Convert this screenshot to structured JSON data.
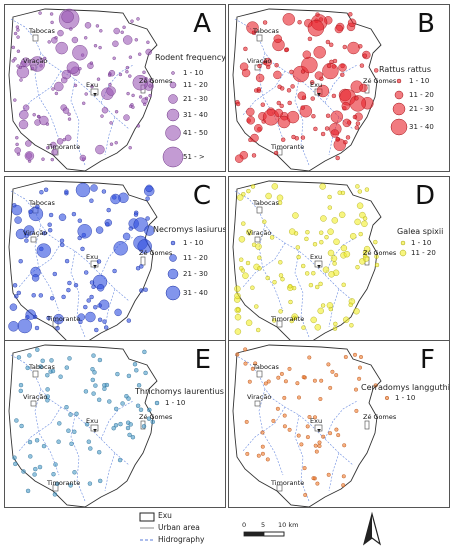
{
  "towns": [
    "Tabocas",
    "Viração",
    "Exu",
    "Zé Gomes",
    "Timorante"
  ],
  "panels": [
    {
      "letter": "A",
      "legend_title": "Rodent frequency",
      "classes": [
        "1 - 10",
        "11 - 20",
        "21 - 30",
        "31 - 40",
        "41 - 50",
        "51 - >"
      ],
      "color": "#9b59b6",
      "stroke": "#6c3483"
    },
    {
      "letter": "B",
      "legend_title": "Rattus rattus",
      "classes": [
        "1 - 10",
        "11 - 20",
        "21 - 30",
        "31 - 40"
      ],
      "color": "#e8232b",
      "stroke": "#a01015"
    },
    {
      "letter": "C",
      "legend_title": "Necromys lasiurus",
      "classes": [
        "1 - 10",
        "11 - 20",
        "21 - 30",
        "31 - 40"
      ],
      "color": "#2f4fe0",
      "stroke": "#1a2ea0"
    },
    {
      "letter": "D",
      "legend_title": "Galea spixii",
      "classes": [
        "1 - 10",
        "11 - 20"
      ],
      "color": "#f2ee2a",
      "stroke": "#a8a410"
    },
    {
      "letter": "E",
      "legend_title": "Thrichomys laurentius",
      "classes": [
        "1 - 10"
      ],
      "color": "#4a9bc8",
      "stroke": "#2a6a90"
    },
    {
      "letter": "F",
      "legend_title": "Cerradomys langguthi",
      "classes": [
        "1 - 10"
      ],
      "color": "#f07a2a",
      "stroke": "#b04a10"
    }
  ],
  "key": {
    "exu": "Exu",
    "urban": "Urban area",
    "hydro": "Hidrography"
  },
  "scale": {
    "labels": [
      "0",
      "5",
      "10 km"
    ]
  },
  "north_icon": "north-arrow-icon"
}
